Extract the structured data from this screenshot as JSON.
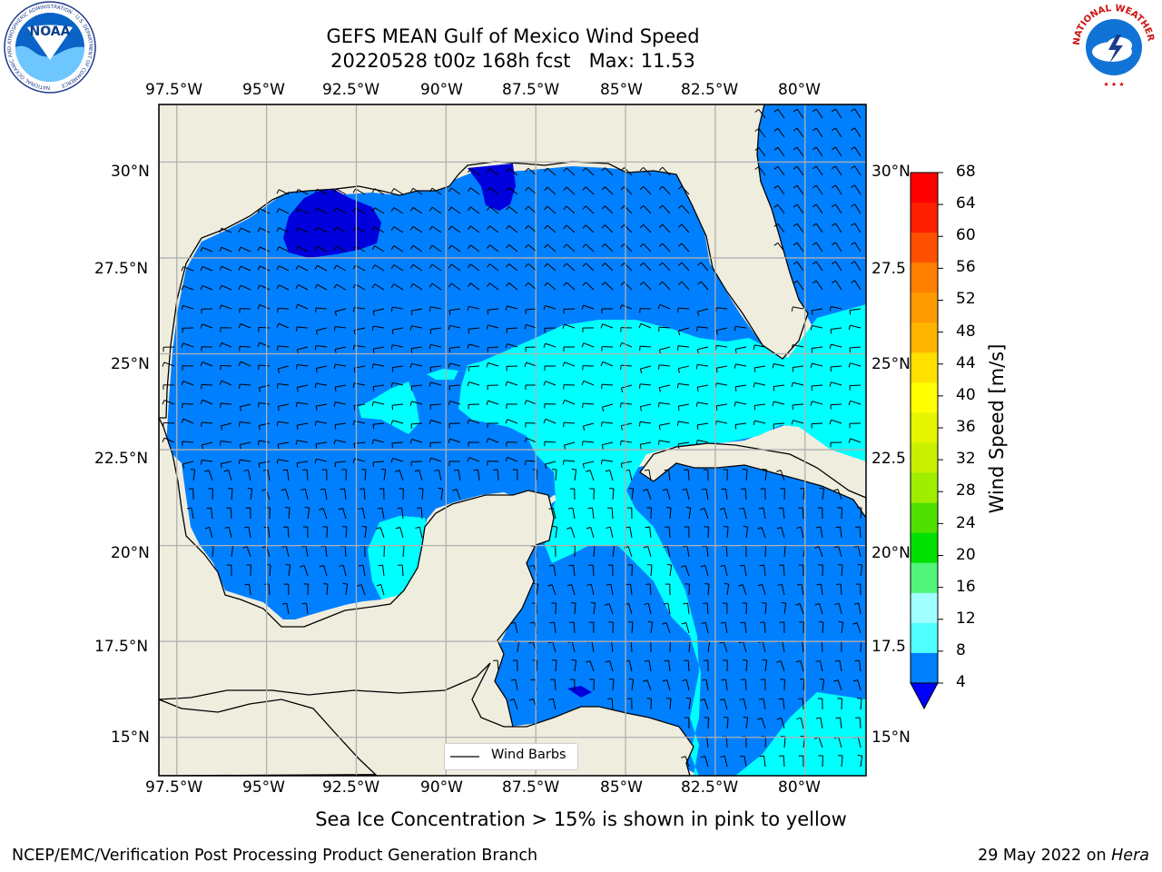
{
  "header": {
    "title": "GEFS MEAN Gulf of Mexico Wind Speed",
    "subtitle": "20220528 t00z 168h fcst   Max: 11.53"
  },
  "logos": {
    "left": "NOAA",
    "left_ring_text": "NATIONAL OCEANIC AND ATMOSPHERIC ADMINISTRATION · U.S. DEPARTMENT OF COMMERCE",
    "right_ring_text": "NATIONAL WEATHER SERVICE"
  },
  "map": {
    "lon_labels": [
      "97.5°W",
      "95°W",
      "92.5°W",
      "90°W",
      "87.5°W",
      "85°W",
      "82.5°W",
      "80°W"
    ],
    "lat_labels_left": [
      "30°N",
      "27.5°N",
      "25°N",
      "22.5°N",
      "20°N",
      "17.5°N",
      "15°N"
    ],
    "lat_labels_right": [
      "30°N",
      "27.5",
      "25°N",
      "22.5",
      "20°N",
      "17.5",
      "15°N"
    ],
    "lon_range": [
      -98,
      -78.3
    ],
    "lat_range": [
      14,
      31.5
    ],
    "land_color": "#efedde",
    "ocean_colors": {
      "4-8": "#0080ff",
      "8-12": "#00ffff",
      "<4": "#0000dd"
    },
    "legend_label": "Wind Barbs"
  },
  "colorbar": {
    "label": "Wind Speed [m/s]",
    "ticks": [
      "68",
      "64",
      "60",
      "56",
      "52",
      "48",
      "44",
      "40",
      "36",
      "32",
      "28",
      "24",
      "20",
      "16",
      "12",
      "8",
      "4"
    ],
    "colors": [
      "#ff0000",
      "#ff2000",
      "#ff5000",
      "#ff7f00",
      "#ff9a00",
      "#ffb400",
      "#ffe000",
      "#ffff00",
      "#e6f500",
      "#c8f000",
      "#a0ed00",
      "#50e000",
      "#00e000",
      "#50f57a",
      "#a0ffff",
      "#50ffff",
      "#00ffff",
      "#0080ff"
    ],
    "under_color": "#0000ff"
  },
  "footer": {
    "note": "Sea Ice Concentration > 15% is shown in pink to yellow",
    "credit": "NCEP/EMC/Verification Post Processing Product Generation Branch",
    "date": "29 May 2022 on",
    "machine": "Hera"
  }
}
